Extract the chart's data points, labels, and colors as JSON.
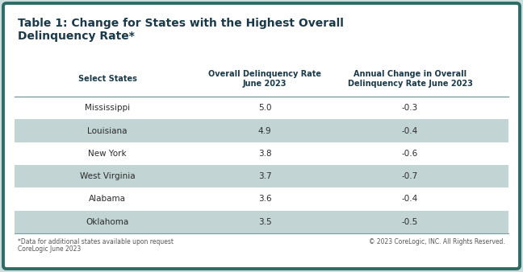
{
  "title_line1": "Table 1: Change for States with the Highest Overall",
  "title_line2": "Delinquency Rate*",
  "col_headers": [
    "Select States",
    "Overall Delinquency Rate\nJune 2023",
    "Annual Change in Overall\nDelinquency Rate June 2023"
  ],
  "rows": [
    [
      "Mississippi",
      "5.0",
      "-0.3"
    ],
    [
      "Louisiana",
      "4.9",
      "-0.4"
    ],
    [
      "New York",
      "3.8",
      "-0.6"
    ],
    [
      "West Virginia",
      "3.7",
      "-0.7"
    ],
    [
      "Alabama",
      "3.6",
      "-0.4"
    ],
    [
      "Oklahoma",
      "3.5",
      "-0.5"
    ]
  ],
  "footnote_line1": "*Data for additional states available upon request",
  "footnote_line2": "CoreLogic June 2023",
  "copyright": "© 2023 CoreLogic, INC. All Rights Reserved.",
  "bg_color": "#ccdede",
  "outer_border_color": "#2e6b65",
  "title_color": "#1a3a4a",
  "header_text_color": "#1a3a4a",
  "row_text_color": "#2a2a2a",
  "stripe_color": "#c2d4d4",
  "white_color": "#ffffff",
  "header_separator_color": "#7a9f9f",
  "footnote_color": "#555555",
  "copyright_color": "#555555"
}
